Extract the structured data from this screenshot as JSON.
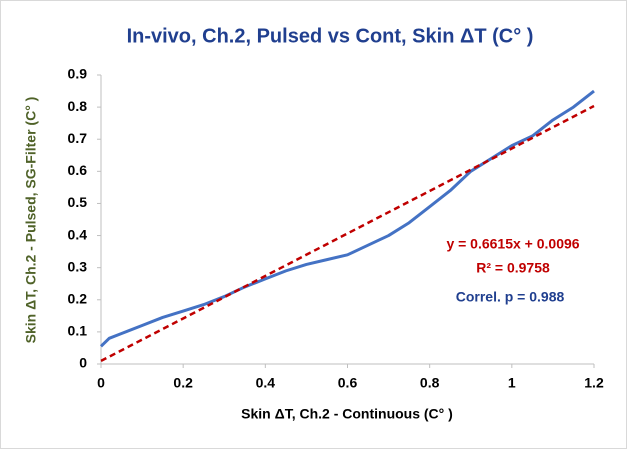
{
  "chart_data": {
    "type": "line",
    "title": "In-vivo, Ch.2, Pulsed vs Cont, Skin ΔT (C° )",
    "xlabel": "Skin ΔT, Ch.2 - Continuous (C° )",
    "ylabel": "Skin ΔT, Ch.2 - Pulsed, SG-Filter (C° )",
    "x": [
      0,
      0.02,
      0.05,
      0.1,
      0.15,
      0.2,
      0.25,
      0.3,
      0.35,
      0.4,
      0.45,
      0.5,
      0.55,
      0.6,
      0.65,
      0.7,
      0.75,
      0.8,
      0.85,
      0.9,
      0.95,
      1.0,
      1.05,
      1.1,
      1.15,
      1.2
    ],
    "series": [
      {
        "color": "#4472c4",
        "values": [
          0.055,
          0.08,
          0.095,
          0.12,
          0.145,
          0.165,
          0.185,
          0.21,
          0.24,
          0.265,
          0.29,
          0.31,
          0.325,
          0.34,
          0.37,
          0.4,
          0.44,
          0.49,
          0.54,
          0.6,
          0.64,
          0.68,
          0.71,
          0.76,
          0.8,
          0.85
        ]
      },
      {
        "color": "#c00000",
        "dashed": true,
        "x": [
          0,
          1.2
        ],
        "values": [
          0.0096,
          0.8034
        ]
      }
    ],
    "annotations": [
      {
        "text": "y = 0.6615x + 0.0096",
        "color": "#c00000"
      },
      {
        "text": "R² = 0.9758",
        "color": "#c00000"
      },
      {
        "text": "Correl. p =  0.988",
        "color": "#203f8f"
      }
    ],
    "xlim": [
      0,
      1.2
    ],
    "xticks": [
      0,
      0.2,
      0.4,
      0.6,
      0.8,
      1,
      1.2
    ],
    "ylim": [
      0,
      0.9
    ],
    "yticks": [
      0,
      0.1,
      0.2,
      0.3,
      0.4,
      0.5,
      0.6,
      0.7,
      0.8,
      0.9
    ],
    "grid": false
  }
}
